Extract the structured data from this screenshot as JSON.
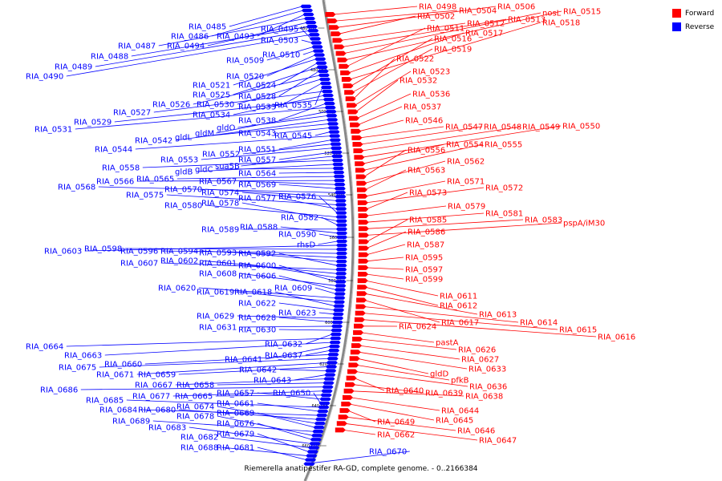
{
  "title": "Riemerella anatipestifer RA-GD, complete genome. - 0..2166384",
  "colors": {
    "forward": "#ff0000",
    "reverse": "#0000ff",
    "backbone": "#888888"
  },
  "legend": [
    {
      "label": "Forward",
      "color": "#ff0000"
    },
    {
      "label": "Reverse",
      "color": "#0000ff"
    }
  ],
  "ticks": [
    "460 kbp",
    "480 kbp",
    "500 kbp",
    "520 kbp",
    "540 kbp",
    "560 kbp",
    "580 kbp",
    "600 kbp",
    "620 kbp",
    "640 kbp",
    "660 kbp"
  ],
  "reverse_labels": [
    "RIA_0485",
    "RIA_0486",
    "RIA_0493",
    "RIA_0487",
    "RIA_0494",
    "RIA_0488",
    "RIA_0489",
    "RIA_0490",
    "RIA_0495",
    "RIA_0503",
    "RIA_0509",
    "RIA_0510",
    "RIA_0520",
    "RIA_0521",
    "RIA_0524",
    "RIA_0525",
    "RIA_0528",
    "RIA_0526",
    "RIA_0530",
    "RIA_0533",
    "RIA_0535",
    "RIA_0527",
    "RIA_0534",
    "RIA_0529",
    "RIA_0538",
    "RIA_0531",
    "gldM",
    "gldO",
    "RIA_0542",
    "gldL",
    "RIA_0543",
    "RIA_0545",
    "RIA_0544",
    "RIA_0551",
    "RIA_0552",
    "RIA_0553",
    "RIA_0557",
    "sua5B",
    "RIA_0558",
    "gldB",
    "gldC",
    "RIA_0564",
    "RIA_0565",
    "RIA_0566",
    "RIA_0567",
    "RIA_0569",
    "RIA_0568",
    "RIA_0570",
    "RIA_0574",
    "RIA_0575",
    "RIA_0577",
    "RIA_0576",
    "RIA_0580",
    "RIA_0578",
    "RIA_0582",
    "RIA_0589",
    "RIA_0588",
    "RIA_0590",
    "rhsD",
    "RIA_0603",
    "RIA_0598",
    "RIA_0596",
    "RIA_0594",
    "RIA_0593",
    "RIA_0592",
    "RIA_0607",
    "RIA_0602",
    "RIA_0601",
    "RIA_0600",
    "RIA_0608",
    "RIA_0606",
    "RIA_0609",
    "RIA_0620",
    "RIA_0619",
    "RIA_0618",
    "RIA_0622",
    "RIA_0623",
    "RIA_0629",
    "RIA_0628",
    "RIA_0631",
    "RIA_0630",
    "RIA_0632",
    "RIA_0664",
    "RIA_0663",
    "RIA_0641",
    "RIA_0637",
    "RIA_0660",
    "RIA_0675",
    "RIA_0671",
    "RIA_0659",
    "RIA_0642",
    "RIA_0643",
    "RIA_0667",
    "RIA_0658",
    "RIA_0686",
    "RIA_0677",
    "RIA_0665",
    "RIA_0657",
    "RIA_0650",
    "RIA_0685",
    "RIA_0661",
    "RIA_0684",
    "RIA_0680",
    "RIA_0674",
    "RIA_0669",
    "RIA_0689",
    "RIA_0678",
    "RIA_0676",
    "RIA_0683",
    "RIA_0682",
    "RIA_0679",
    "RIA_0688",
    "RIA_0681",
    "RIA_0670"
  ],
  "forward_labels": [
    "RIA_0498",
    "RIA_0504",
    "RIA_0506",
    "RIA_0502",
    "RIA_0512",
    "RIA_0513",
    "nosL",
    "RIA_0515",
    "RIA_0511",
    "RIA_0517",
    "RIA_0518",
    "RIA_0516",
    "RIA_0519",
    "RIA_0522",
    "RIA_0523",
    "RIA_0532",
    "RIA_0536",
    "RIA_0537",
    "RIA_0546",
    "RIA_0547",
    "RIA_0548",
    "RIA_0549",
    "RIA_0550",
    "RIA_0554",
    "RIA_0555",
    "RIA_0556",
    "RIA_0562",
    "RIA_0563",
    "RIA_0571",
    "RIA_0572",
    "RIA_0573",
    "RIA_0579",
    "RIA_0581",
    "RIA_0583",
    "pspA/iM30",
    "RIA_0585",
    "RIA_0586",
    "RIA_0587",
    "RIA_0595",
    "RIA_0597",
    "RIA_0599",
    "RIA_0611",
    "RIA_0612",
    "RIA_0613",
    "RIA_0617",
    "RIA_0614",
    "RIA_0615",
    "RIA_0616",
    "RIA_0624",
    "pastA",
    "RIA_0626",
    "RIA_0627",
    "RIA_0633",
    "gldD",
    "pfkB",
    "RIA_0636",
    "RIA_0640",
    "RIA_0639",
    "RIA_0638",
    "RIA_0644",
    "RIA_0645",
    "RIA_0649",
    "RIA_0646",
    "RIA_0647",
    "RIA_0662"
  ]
}
